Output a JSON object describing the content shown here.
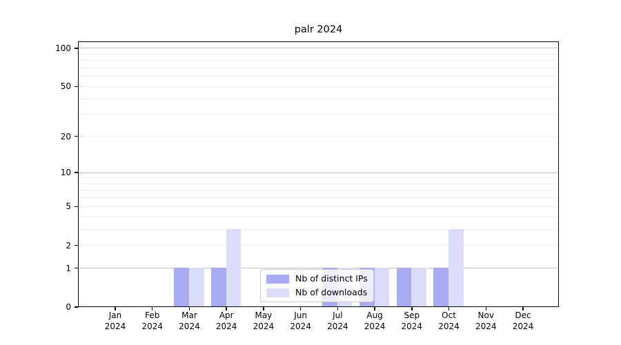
{
  "chart_data": {
    "type": "bar",
    "title": "palr 2024",
    "categories": [
      "Jan 2024",
      "Feb 2024",
      "Mar 2024",
      "Apr 2024",
      "May 2024",
      "Jun 2024",
      "Jul 2024",
      "Aug 2024",
      "Sep 2024",
      "Oct 2024",
      "Nov 2024",
      "Dec 2024"
    ],
    "series": [
      {
        "name": "Nb of distinct IPs",
        "color": "#a9abf2",
        "values": [
          0,
          0,
          1,
          1,
          0,
          0,
          1,
          1,
          1,
          1,
          0,
          0
        ]
      },
      {
        "name": "Nb of downloads",
        "color": "#dcddfa",
        "values": [
          0,
          0,
          1,
          3,
          0,
          0,
          1,
          1,
          1,
          3,
          0,
          0
        ]
      }
    ],
    "yscale": "log1p",
    "ylim": [
      0,
      113
    ],
    "yticks": [
      0,
      1,
      2,
      5,
      10,
      20,
      50,
      100
    ],
    "major_gridlines": [
      1,
      10,
      100
    ],
    "minor_gridlines": [
      2,
      3,
      4,
      5,
      6,
      7,
      8,
      9,
      20,
      30,
      40,
      50,
      60,
      70,
      80,
      90
    ],
    "grid": "horizontal",
    "legend_position": "lower center",
    "colors": {
      "axis": "#000000",
      "major_grid": "#c0c0c0",
      "minor_grid": "#ededed",
      "legend_border": "#cccccc",
      "legend_bg": "rgba(255,255,255,0.8)"
    }
  }
}
